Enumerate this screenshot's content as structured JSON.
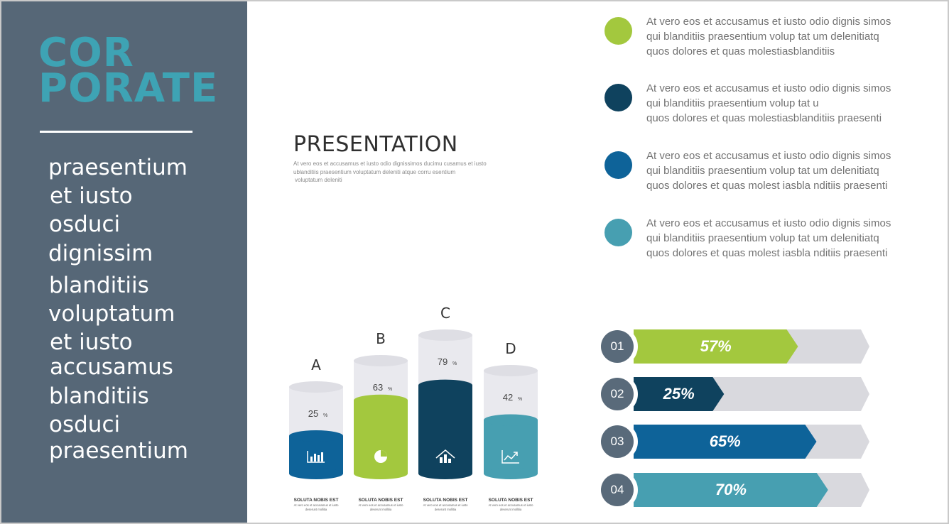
{
  "sidebar": {
    "brand": [
      "COR",
      "PORATE"
    ],
    "words": [
      "praesentium",
      "et iusto",
      "osduci",
      "dignissim",
      "blanditiis",
      "voluptatum",
      "et iusto",
      "accusamus",
      "blanditiis",
      "osduci",
      "praesentium"
    ]
  },
  "presentation": {
    "title": "PRESENTATION",
    "body": [
      "At vero eos et accusamus et iusto odio dignissimos ducimu cusamus et iusto",
      "ublanditiis praesentium voluptatum deleniti atque corru esentium",
      "voluptatum deleniti"
    ]
  },
  "bullets": [
    {
      "color": "#a3c83e",
      "lines": [
        "At vero eos et accusamus et iusto odio dignis simos",
        "qui blanditiis praesentium volup tat um delenitiatq",
        "quos dolores et quas molestiasblanditiis"
      ]
    },
    {
      "color": "#0f425e",
      "lines": [
        "At vero eos et accusamus et iusto odio dignis simos",
        "qui blanditiis praesentium volup tat u",
        "quos dolores et quas molestiasblanditiis praesenti"
      ]
    },
    {
      "color": "#0e6399",
      "lines": [
        "At vero eos et accusamus et iusto odio dignis simos",
        "qui blanditiis praesentium volup tat um delenitiatq",
        "quos dolores et quas molest iasbla nditiis praesenti"
      ]
    },
    {
      "color": "#479fb1",
      "lines": [
        "At vero eos et accusamus et iusto odio dignis simos",
        "qui blanditiis praesentium volup tat um delenitiatq",
        "quos dolores et quas molest iasbla nditiis praesenti"
      ]
    }
  ],
  "chart_data": {
    "type": "bar",
    "categories": [
      "A",
      "B",
      "C",
      "D"
    ],
    "values": [
      25,
      63,
      79,
      42
    ],
    "value_labels": [
      "25",
      "63",
      "79",
      "42"
    ],
    "unit": "%",
    "colors": [
      "#0e6399",
      "#a3c83e",
      "#0f425e",
      "#479fb1"
    ],
    "icons": [
      "bar-chart-icon",
      "pie-chart-icon",
      "house-chart-icon",
      "trend-line-icon"
    ],
    "caption_title": "SOLUTA NOBIS EST",
    "caption_lines": [
      "At vero eos et accusamus et iusto",
      "deserunt mollitia"
    ]
  },
  "progress": [
    {
      "num": "01",
      "label": "57%",
      "value": 57,
      "color": "#a3c83e"
    },
    {
      "num": "02",
      "label": "25%",
      "value": 25,
      "color": "#0f425e"
    },
    {
      "num": "03",
      "label": "65%",
      "value": 65,
      "color": "#0e6399"
    },
    {
      "num": "04",
      "label": "70%",
      "value": 70,
      "color": "#479fb1"
    }
  ],
  "colors": {
    "sidebar": "#566777",
    "brand": "#3ea3b4",
    "track": "#d9d9de",
    "badge": "#596a7a"
  }
}
